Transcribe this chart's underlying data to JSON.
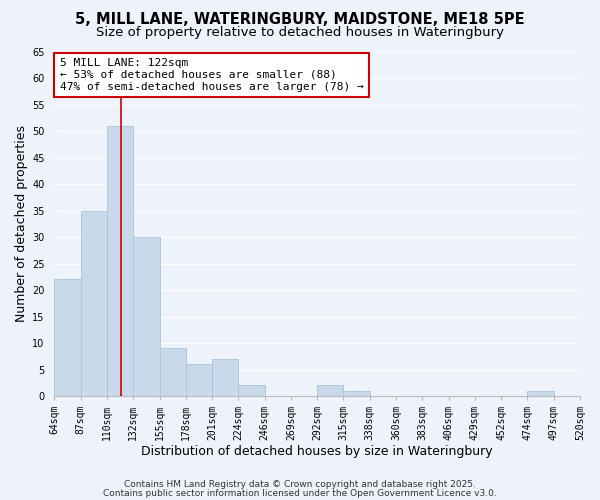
{
  "title1": "5, MILL LANE, WATERINGBURY, MAIDSTONE, ME18 5PE",
  "title2": "Size of property relative to detached houses in Wateringbury",
  "xlabel": "Distribution of detached houses by size in Wateringbury",
  "ylabel": "Number of detached properties",
  "bar_values": [
    22,
    35,
    51,
    30,
    9,
    6,
    7,
    2,
    0,
    0,
    2,
    1,
    0,
    0,
    0,
    0,
    0,
    0,
    1,
    0
  ],
  "xtick_labels": [
    "64sqm",
    "87sqm",
    "110sqm",
    "132sqm",
    "155sqm",
    "178sqm",
    "201sqm",
    "224sqm",
    "246sqm",
    "269sqm",
    "292sqm",
    "315sqm",
    "338sqm",
    "360sqm",
    "383sqm",
    "406sqm",
    "429sqm",
    "452sqm",
    "474sqm",
    "497sqm",
    "520sqm"
  ],
  "ylim": [
    0,
    65
  ],
  "yticks": [
    0,
    5,
    10,
    15,
    20,
    25,
    30,
    35,
    40,
    45,
    50,
    55,
    60,
    65
  ],
  "bar_color": "#c8daea",
  "bar_edgecolor": "#aac4dd",
  "vline_bar_index": 2.55,
  "vline_color": "#cc0000",
  "annotation_line1": "5 MILL LANE: 122sqm",
  "annotation_line2": "← 53% of detached houses are smaller (88)",
  "annotation_line3": "47% of semi-detached houses are larger (78) →",
  "annotation_box_edgecolor": "#cc0000",
  "annotation_box_facecolor": "#ffffff",
  "bg_color": "#eef2fb",
  "grid_color": "#ffffff",
  "footer1": "Contains HM Land Registry data © Crown copyright and database right 2025.",
  "footer2": "Contains public sector information licensed under the Open Government Licence v3.0.",
  "title_fontsize": 10.5,
  "subtitle_fontsize": 9.5,
  "axis_label_fontsize": 9,
  "tick_fontsize": 7,
  "annotation_fontsize": 8,
  "footer_fontsize": 6.5
}
